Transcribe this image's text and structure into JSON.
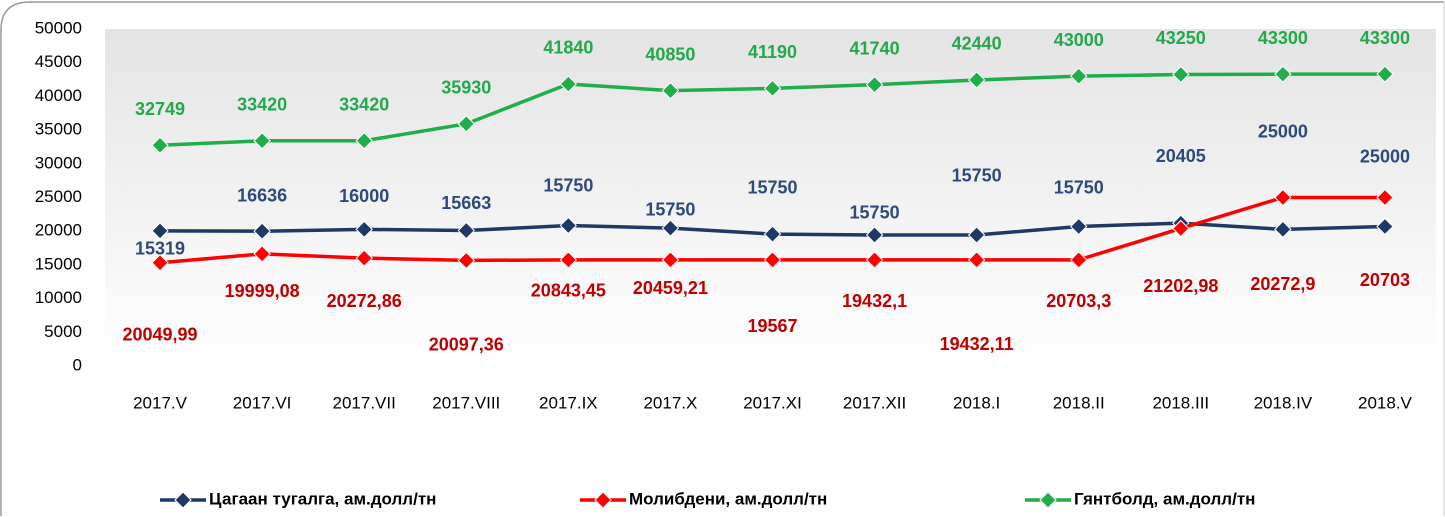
{
  "chart_data": {
    "type": "line",
    "categories": [
      "2017.V",
      "2017.VI",
      "2017.VII",
      "2017.VIII",
      "2017.IX",
      "2017.X",
      "2017.XI",
      "2017.XII",
      "2018.I",
      "2018.II",
      "2018.III",
      "2018.IV",
      "2018.V"
    ],
    "series": [
      {
        "name": "Цагаан тугалга, ам.долл/тн",
        "color": "#1f3864",
        "label_color": "#c00000",
        "values": [
          20049.99,
          19999.08,
          20272.86,
          20097.36,
          20843.45,
          20459.21,
          19567,
          19432.1,
          19432.11,
          20703.3,
          21202.98,
          20272.9,
          20703
        ],
        "value_labels": [
          "20049,99",
          "19999,08",
          "20272,86",
          "20097,36",
          "20843,45",
          "20459,21",
          "19567",
          "19432,1",
          "19432,11",
          "20703,3",
          "21202,98",
          "20272,9",
          "20703"
        ]
      },
      {
        "name": "Молибдени, ам.долл/тн",
        "color": "#ff0000",
        "label_color": "#2e4a7a",
        "values": [
          15319,
          16636,
          16000,
          15663,
          15750,
          15750,
          15750,
          15750,
          15750,
          15750,
          20405,
          25000,
          25000
        ]
      },
      {
        "name": "Гянтболд, ам.долл/тн",
        "color": "#1fae4b",
        "label_color": "#23a84c",
        "values": [
          32749,
          33420,
          33420,
          35930,
          41840,
          40850,
          41190,
          41740,
          42440,
          43000,
          43250,
          43300,
          43300
        ]
      }
    ],
    "ylim": [
      0,
      50000
    ],
    "yticks": [
      0,
      5000,
      10000,
      15000,
      20000,
      25000,
      30000,
      35000,
      40000,
      45000,
      50000
    ],
    "grid": false
  }
}
